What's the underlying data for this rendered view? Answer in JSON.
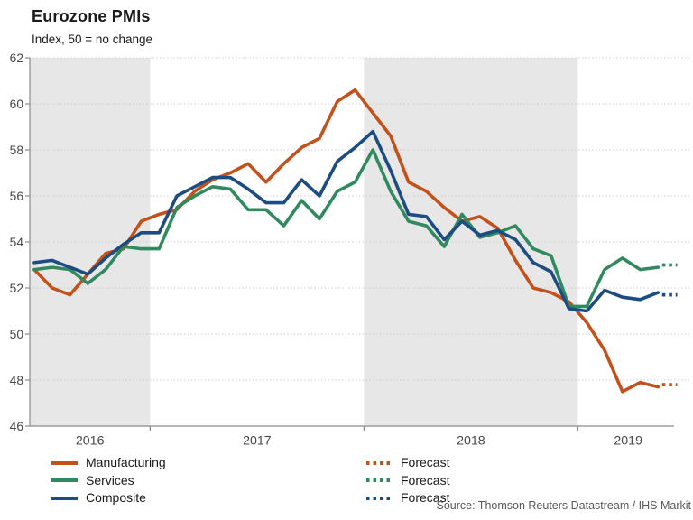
{
  "header": {
    "title": "Eurozone PMIs",
    "subtitle": "Index, 50 = no change"
  },
  "source": "Source: Thomson Reuters Datastream / IHS Markit",
  "chart_data": {
    "type": "line",
    "title": "Eurozone PMIs",
    "subtitle": "Index, 50 = no change",
    "ylim": [
      46,
      62
    ],
    "ytick_step": 2,
    "grid": "horizontal-dotted",
    "legend_position": "bottom",
    "x_monthly_start": "2016-06",
    "x_monthly_end": "2019-05",
    "forecast_month": "2019-06",
    "x_tick_labels": [
      "2016",
      "2017",
      "2018",
      "2019"
    ],
    "shaded_periods": [
      "2016",
      "2018"
    ],
    "forecast_label": "Forecast",
    "series": [
      {
        "name": "Manufacturing",
        "color": "#C3511A",
        "values": [
          52.8,
          52.0,
          51.7,
          52.6,
          53.5,
          53.7,
          54.9,
          55.2,
          55.4,
          56.2,
          56.7,
          57.0,
          57.4,
          56.6,
          57.4,
          58.1,
          58.5,
          60.1,
          60.6,
          59.6,
          58.6,
          56.6,
          56.2,
          55.5,
          54.9,
          55.1,
          54.6,
          53.2,
          52.0,
          51.8,
          51.4,
          50.5,
          49.3,
          47.5,
          47.9,
          47.7
        ],
        "forecast": 47.8
      },
      {
        "name": "Services",
        "color": "#318A5F",
        "values": [
          52.8,
          52.9,
          52.8,
          52.2,
          52.8,
          53.8,
          53.7,
          53.7,
          55.5,
          56.0,
          56.4,
          56.3,
          55.4,
          55.4,
          54.7,
          55.8,
          55.0,
          56.2,
          56.6,
          58.0,
          56.2,
          54.9,
          54.7,
          53.8,
          55.2,
          54.2,
          54.4,
          54.7,
          53.7,
          53.4,
          51.2,
          51.2,
          52.8,
          53.3,
          52.8,
          52.9
        ],
        "forecast": 53.0
      },
      {
        "name": "Composite",
        "color": "#1C4C80",
        "values": [
          53.1,
          53.2,
          52.9,
          52.6,
          53.3,
          53.9,
          54.4,
          54.4,
          56.0,
          56.4,
          56.8,
          56.8,
          56.3,
          55.7,
          55.7,
          56.7,
          56.0,
          57.5,
          58.1,
          58.8,
          57.1,
          55.2,
          55.1,
          54.1,
          54.9,
          54.3,
          54.5,
          54.1,
          53.1,
          52.7,
          51.1,
          51.0,
          51.9,
          51.6,
          51.5,
          51.8
        ],
        "forecast": 51.7
      }
    ],
    "colors": {
      "band": "#E7E7E7",
      "grid": "#CCCCCC",
      "axis": "#8C8C8C",
      "tick_text": "#474747"
    }
  }
}
